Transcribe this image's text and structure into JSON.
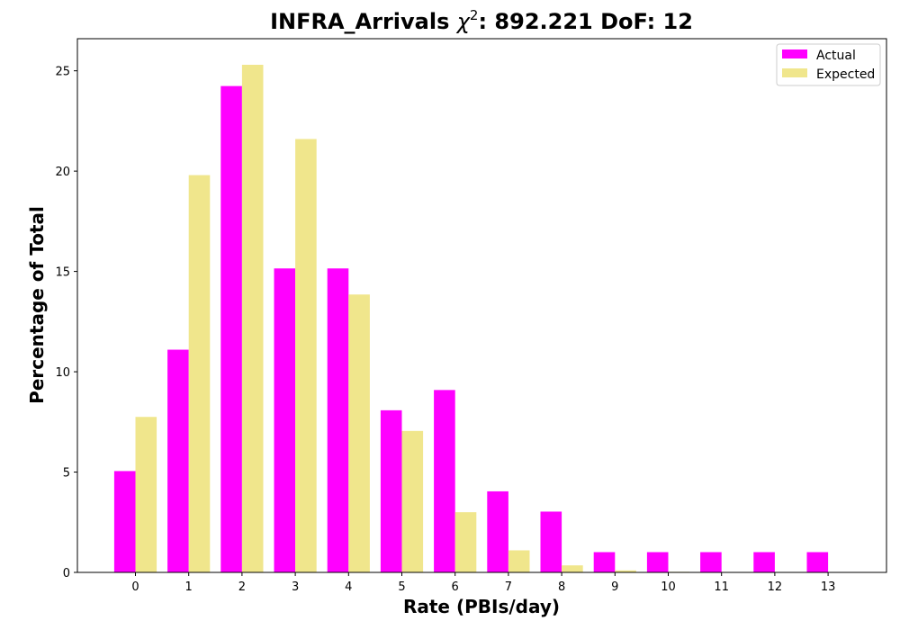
{
  "chart_data": {
    "type": "bar",
    "title_main": "INFRA_Arrivals ",
    "title_chi": "χ",
    "title_sup": "2",
    "title_rest": ": 892.221 DoF: 12",
    "xlabel": "Rate (PBIs/day)",
    "ylabel": "Percentage of Total",
    "categories": [
      "0",
      "1",
      "2",
      "3",
      "4",
      "5",
      "6",
      "7",
      "8",
      "9",
      "10",
      "11",
      "12",
      "13"
    ],
    "series": [
      {
        "name": "Actual",
        "color": "#ff00ff",
        "values": [
          5.05,
          11.1,
          24.24,
          15.15,
          15.15,
          8.08,
          9.09,
          4.04,
          3.03,
          1.01,
          1.01,
          1.01,
          1.01,
          1.01
        ]
      },
      {
        "name": "Expected",
        "color": "#f0e68c",
        "values": [
          7.75,
          19.8,
          25.3,
          21.6,
          13.85,
          7.05,
          3.0,
          1.1,
          0.35,
          0.1,
          0.03,
          0.0,
          0.0,
          0.0
        ]
      }
    ],
    "ylim": [
      0,
      26.6
    ],
    "yticks": [
      0,
      5,
      10,
      15,
      20,
      25
    ],
    "legend": {
      "placement": "top-right",
      "entries": [
        "Actual",
        "Expected"
      ]
    },
    "grid": false
  }
}
